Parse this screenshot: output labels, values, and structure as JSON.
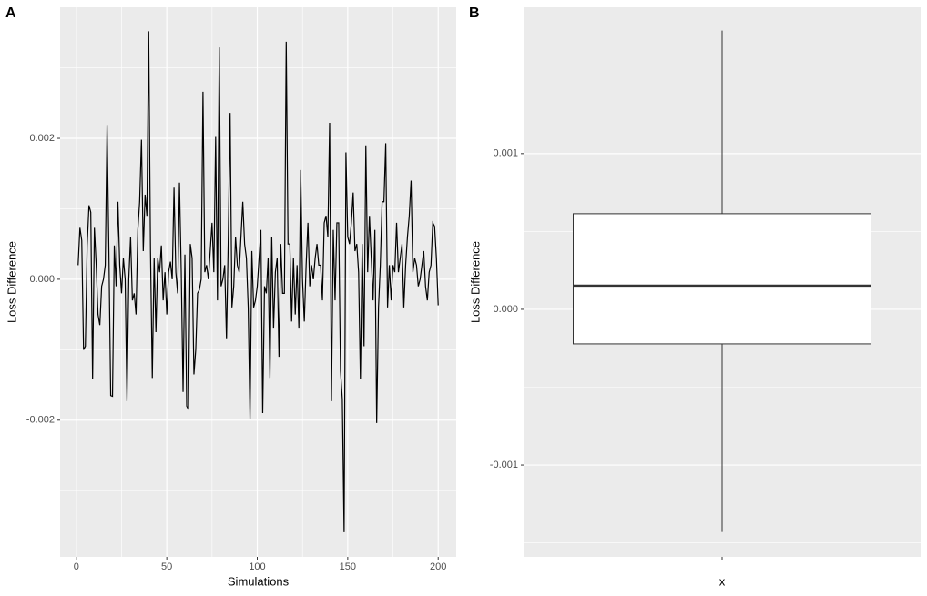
{
  "chart_data": [
    {
      "type": "line",
      "tag": "A",
      "x_label": "Simulations",
      "y_label": "Loss Difference",
      "color": "#000000",
      "hline": 0.00016,
      "hline_color": "#0000ff",
      "x": [
        1,
        2,
        3,
        4,
        5,
        6,
        7,
        8,
        9,
        10,
        11,
        12,
        13,
        14,
        15,
        16,
        17,
        18,
        19,
        20,
        21,
        22,
        23,
        24,
        25,
        26,
        27,
        28,
        29,
        30,
        31,
        32,
        33,
        34,
        35,
        36,
        37,
        38,
        39,
        40,
        41,
        42,
        43,
        44,
        45,
        46,
        47,
        48,
        49,
        50,
        51,
        52,
        53,
        54,
        55,
        56,
        57,
        58,
        59,
        60,
        61,
        62,
        63,
        64,
        65,
        66,
        67,
        68,
        69,
        70,
        71,
        72,
        73,
        74,
        75,
        76,
        77,
        78,
        79,
        80,
        81,
        82,
        83,
        84,
        85,
        86,
        87,
        88,
        89,
        90,
        91,
        92,
        93,
        94,
        95,
        96,
        97,
        98,
        99,
        100,
        101,
        102,
        103,
        104,
        105,
        106,
        107,
        108,
        109,
        110,
        111,
        112,
        113,
        114,
        115,
        116,
        117,
        118,
        119,
        120,
        121,
        122,
        123,
        124,
        125,
        126,
        127,
        128,
        129,
        130,
        131,
        132,
        133,
        134,
        135,
        136,
        137,
        138,
        139,
        140,
        141,
        142,
        143,
        144,
        145,
        146,
        147,
        148,
        149,
        150,
        151,
        152,
        153,
        154,
        155,
        156,
        157,
        158,
        159,
        160,
        161,
        162,
        163,
        164,
        165,
        166,
        167,
        168,
        169,
        170,
        171,
        172,
        173,
        174,
        175,
        176,
        177,
        178,
        179,
        180,
        181,
        182,
        183,
        184,
        185,
        186,
        187,
        188,
        189,
        190,
        191,
        192,
        193,
        194,
        195,
        196,
        197,
        198,
        199,
        200
      ],
      "values": [
        0.0002,
        0.00073,
        0.00055,
        -0.001,
        -0.00095,
        0.00048,
        0.00105,
        0.00095,
        -0.00142,
        0.00073,
        0.0002,
        -0.0005,
        -0.00065,
        -0.0001,
        0.0,
        0.0002,
        0.00219,
        0.0004,
        -0.00165,
        -0.00166,
        0.00048,
        -0.0001,
        0.0011,
        0.0002,
        -0.0002,
        0.0003,
        0.0,
        -0.00173,
        0.0,
        0.0006,
        -0.0003,
        -0.0002,
        -0.0005,
        0.0007,
        0.0011,
        0.00198,
        0.0004,
        0.0012,
        0.0009,
        0.00352,
        0.0004,
        -0.0014,
        0.0003,
        -0.00075,
        0.0003,
        0.0001,
        0.00048,
        -0.0003,
        0.0001,
        -0.0005,
        0.0001,
        0.00025,
        0.0,
        0.0013,
        0.0001,
        -0.0002,
        0.00137,
        0.0001,
        -0.0016,
        0.00035,
        -0.0018,
        -0.00185,
        0.0005,
        0.0003,
        -0.00135,
        -0.001,
        -0.0002,
        -0.00015,
        0.0,
        0.00266,
        0.0001,
        0.0002,
        0.0,
        0.0004,
        0.0008,
        0.0001,
        0.00202,
        -0.0003,
        0.00329,
        -0.0001,
        0.0,
        0.0002,
        -0.00085,
        0.0006,
        0.00236,
        -0.0004,
        -0.0001,
        0.0006,
        0.0002,
        0.0001,
        0.0006,
        0.0011,
        0.0005,
        0.0003,
        -0.0004,
        -0.00198,
        0.0004,
        -0.0004,
        -0.0003,
        -0.0001,
        0.0003,
        0.0007,
        -0.0019,
        -0.0001,
        -0.0002,
        0.0003,
        -0.0014,
        0.0006,
        -0.0007,
        0.0001,
        0.0003,
        -0.0011,
        0.0005,
        -0.0002,
        -0.0002,
        0.00337,
        0.0005,
        0.0005,
        -0.0006,
        0.0003,
        -0.0005,
        0.0002,
        -0.0007,
        0.00155,
        0.0,
        -0.0006,
        0.0002,
        0.0008,
        -0.0001,
        0.0002,
        0.0,
        0.0003,
        0.0005,
        0.0002,
        0.0002,
        -0.0003,
        0.0008,
        0.0009,
        0.0006,
        0.00222,
        -0.00173,
        0.0007,
        -0.0003,
        0.0008,
        0.0008,
        -0.0013,
        -0.0017,
        -0.00359,
        0.0018,
        0.0006,
        0.0005,
        0.0008,
        0.00123,
        0.0004,
        0.0005,
        0.0001,
        -0.00142,
        0.0005,
        -0.00095,
        0.0019,
        0.0001,
        0.0009,
        0.0003,
        -0.0003,
        0.0007,
        -0.00204,
        -0.0004,
        0.0002,
        0.0011,
        0.0011,
        0.00193,
        -0.0004,
        0.0002,
        -0.0003,
        0.0002,
        0.0001,
        0.0008,
        0.0001,
        0.0003,
        0.0005,
        -0.0004,
        0.0002,
        0.0006,
        0.0009,
        0.0014,
        0.0001,
        0.0003,
        0.0002,
        -0.0001,
        0.0,
        0.0002,
        0.0004,
        -0.0001,
        -0.0003,
        0.0001,
        0.0002,
        0.0008,
        0.00075,
        0.0003,
        -0.00037
      ],
      "xlim": [
        -8.95,
        209.95
      ],
      "xticks": [
        0,
        50,
        100,
        150,
        200
      ],
      "xminor": [
        25,
        75,
        125,
        175
      ],
      "ylim": [
        -0.00394,
        0.00386
      ],
      "yticks": [
        -0.002,
        {
          "value": 0,
          "label": "0.000"
        },
        0.002
      ],
      "yminor": [
        -0.003,
        -0.001,
        0.001,
        0.003
      ],
      "grid": true
    },
    {
      "type": "box",
      "tag": "B",
      "x_label": "x",
      "y_label": "Loss Difference",
      "categories": [
        null
      ],
      "boxes": [
        {
          "whisker_low": -0.00143,
          "q1": -0.000222,
          "median": 0.000152,
          "q3": 0.000614,
          "whisker_high": 0.00179
        }
      ],
      "ylim": [
        -0.00159,
        0.00194
      ],
      "yticks": [
        -0.001,
        {
          "value": 0,
          "label": "0.000"
        },
        0.001
      ],
      "yminor": [
        -0.0015,
        -0.0005,
        0.0005,
        0.0015
      ],
      "grid": true
    }
  ]
}
